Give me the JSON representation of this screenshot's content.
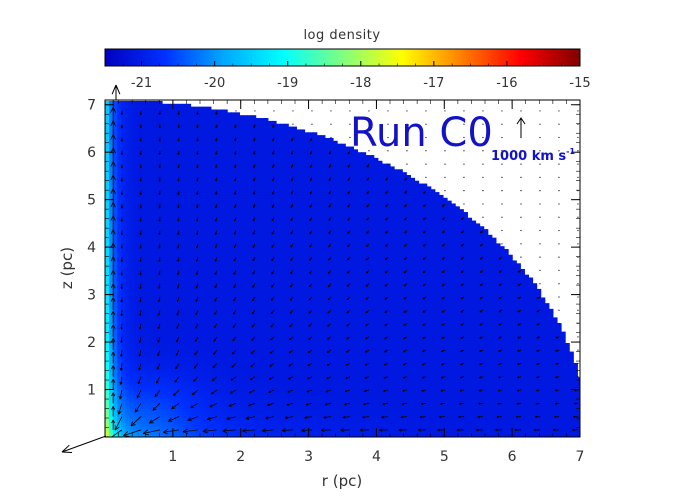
{
  "chart_data": {
    "type": "heatmap",
    "title": "",
    "xlabel": "r (pc)",
    "ylabel": "z (pc)",
    "xlim": [
      0,
      7
    ],
    "ylim": [
      0,
      7.1
    ],
    "x_ticks": [
      "1",
      "2",
      "3",
      "4",
      "5",
      "6",
      "7"
    ],
    "y_ticks": [
      "1",
      "2",
      "3",
      "4",
      "5",
      "6",
      "7"
    ],
    "annotation": "Run C0",
    "scale_arrow_label": "1000 km s",
    "scale_arrow_superscript": "-1",
    "colorbar": {
      "label": "log density",
      "range": [
        -21.5,
        -15
      ],
      "ticks": [
        "-21",
        "-20",
        "-19",
        "-18",
        "-17",
        "-16",
        "-15"
      ],
      "colormap": [
        "#0000c0",
        "#0030ff",
        "#00a8ff",
        "#00ffff",
        "#80ff80",
        "#ffff00",
        "#ff8000",
        "#ff0000",
        "#800000"
      ]
    },
    "boundary_radius_pc": 7.1,
    "field": {
      "background_log_density": -21.1,
      "axis_log_density": -18.3,
      "midplane_log_density": -19.8
    },
    "velocity_scale_kms_per_pc": 0.0015,
    "colors": {
      "annotation": "#1212c8",
      "arrows": "#000000",
      "frame": "#000000"
    }
  }
}
